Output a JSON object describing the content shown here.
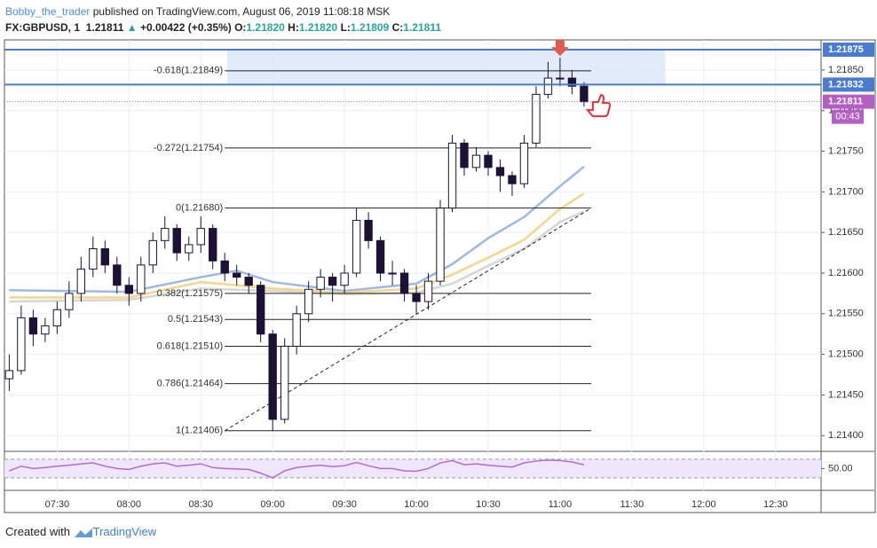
{
  "header": {
    "author": "Bobby_the_trader",
    "published": "published on TradingView.com, August 06, 2019 11:08:18 MSK",
    "symbol": "FX:GBPUSD, 1",
    "last": "1.21811",
    "change": "+0.00422 (+0.35%)",
    "ohlc": [
      {
        "label": "O:",
        "value": "1.21820"
      },
      {
        "label": "H:",
        "value": "1.21820"
      },
      {
        "label": "L:",
        "value": "1.21809"
      },
      {
        "label": "C:",
        "value": "1.21811"
      }
    ]
  },
  "footer": {
    "created": "Created with",
    "brand": "TradingView"
  },
  "chart_data": {
    "type": "candlestick",
    "x": [
      "07:10",
      "07:15",
      "07:20",
      "07:25",
      "07:30",
      "07:35",
      "07:40",
      "07:45",
      "07:50",
      "07:55",
      "08:00",
      "08:05",
      "08:10",
      "08:15",
      "08:20",
      "08:25",
      "08:30",
      "08:35",
      "08:40",
      "08:45",
      "08:50",
      "08:55",
      "09:00",
      "09:05",
      "09:10",
      "09:15",
      "09:20",
      "09:25",
      "09:30",
      "09:35",
      "09:40",
      "09:45",
      "09:50",
      "09:55",
      "10:00",
      "10:05",
      "10:10",
      "10:15",
      "10:20",
      "10:25",
      "10:30",
      "10:35",
      "10:40",
      "10:45",
      "10:50",
      "10:55",
      "11:00",
      "11:05",
      "11:10"
    ],
    "open": [
      1.2147,
      1.2148,
      1.21545,
      1.21525,
      1.21535,
      1.21555,
      1.21575,
      1.21605,
      1.2163,
      1.2161,
      1.21585,
      1.21575,
      1.2161,
      1.2164,
      1.21655,
      1.21625,
      1.21635,
      1.21655,
      1.21615,
      1.216,
      1.21595,
      1.21585,
      1.21525,
      1.2142,
      1.2151,
      1.2155,
      1.2158,
      1.21595,
      1.21585,
      1.216,
      1.21665,
      1.2164,
      1.216,
      1.216,
      1.21575,
      1.21565,
      1.2159,
      1.2168,
      1.2176,
      1.2173,
      1.21745,
      1.2173,
      1.2172,
      1.2171,
      1.2176,
      1.2182,
      1.2184,
      1.2184,
      1.2183
    ],
    "high": [
      1.215,
      1.2156,
      1.21555,
      1.21545,
      1.21565,
      1.2159,
      1.2162,
      1.21645,
      1.2164,
      1.2162,
      1.21595,
      1.2162,
      1.2165,
      1.2167,
      1.2166,
      1.21645,
      1.2167,
      1.2166,
      1.21625,
      1.2161,
      1.216,
      1.2159,
      1.2153,
      1.2152,
      1.2156,
      1.2159,
      1.21605,
      1.216,
      1.2161,
      1.2168,
      1.21675,
      1.21645,
      1.21615,
      1.21605,
      1.21585,
      1.216,
      1.2169,
      1.2177,
      1.21765,
      1.21755,
      1.2175,
      1.2174,
      1.21725,
      1.2177,
      1.2183,
      1.2186,
      1.21865,
      1.2185,
      1.21835
    ],
    "low": [
      1.21455,
      1.21475,
      1.2151,
      1.21515,
      1.21525,
      1.21545,
      1.21565,
      1.21595,
      1.216,
      1.21575,
      1.2156,
      1.21565,
      1.216,
      1.2163,
      1.21615,
      1.21615,
      1.21625,
      1.21605,
      1.2159,
      1.21585,
      1.21575,
      1.21515,
      1.21406,
      1.21415,
      1.215,
      1.2154,
      1.2157,
      1.21565,
      1.21575,
      1.21595,
      1.2163,
      1.2159,
      1.21585,
      1.21565,
      1.2155,
      1.21555,
      1.21585,
      1.21675,
      1.2172,
      1.21725,
      1.2172,
      1.217,
      1.21695,
      1.21705,
      1.21755,
      1.21815,
      1.2183,
      1.2182,
      1.21805
    ],
    "close": [
      1.2148,
      1.21545,
      1.21525,
      1.21535,
      1.21555,
      1.21575,
      1.21605,
      1.2163,
      1.2161,
      1.21585,
      1.21575,
      1.2161,
      1.2164,
      1.21655,
      1.21625,
      1.21635,
      1.21655,
      1.21615,
      1.216,
      1.21595,
      1.21585,
      1.21525,
      1.2142,
      1.2151,
      1.2155,
      1.2158,
      1.21595,
      1.21585,
      1.216,
      1.21665,
      1.2164,
      1.216,
      1.216,
      1.21575,
      1.21565,
      1.2159,
      1.2168,
      1.2176,
      1.2173,
      1.21745,
      1.2173,
      1.2172,
      1.2171,
      1.2176,
      1.2182,
      1.2184,
      1.2184,
      1.2183,
      1.21811
    ],
    "up_color": "#ffffff",
    "down_color": "#1d1136",
    "wick_color": "#1d1136",
    "moving_averages": [
      {
        "color": "#9fb8e3",
        "x": [
          "07:10",
          "08:00",
          "08:30",
          "08:45",
          "09:00",
          "09:30",
          "10:00",
          "10:15",
          "10:30",
          "10:45",
          "11:00",
          "11:10"
        ],
        "values": [
          1.21579,
          1.21577,
          1.21595,
          1.21603,
          1.21589,
          1.21578,
          1.21587,
          1.21611,
          1.21643,
          1.21669,
          1.21707,
          1.21731
        ]
      },
      {
        "color": "#f2d68a",
        "x": [
          "07:10",
          "08:00",
          "08:30",
          "09:00",
          "09:30",
          "10:00",
          "10:15",
          "10:30",
          "10:45",
          "11:00",
          "11:10"
        ],
        "values": [
          1.2157,
          1.2157,
          1.21589,
          1.21581,
          1.21576,
          1.21581,
          1.21598,
          1.21619,
          1.21641,
          1.21679,
          1.21698
        ]
      },
      {
        "color": "#d6d6d6",
        "x": [
          "07:10",
          "08:00",
          "08:30",
          "09:00",
          "09:30",
          "10:00",
          "10:15",
          "10:30",
          "10:45",
          "11:00",
          "11:10"
        ],
        "values": [
          1.21565,
          1.21567,
          1.21581,
          1.21578,
          1.21574,
          1.21576,
          1.21587,
          1.21609,
          1.2163,
          1.21663,
          1.21676
        ]
      }
    ],
    "zone": {
      "start": "08:41",
      "end": "11:44",
      "color": "#dbe6f8"
    },
    "price_lines": [
      {
        "value": 1.21875,
        "color": "#4a7bd0"
      },
      {
        "value": 1.21832,
        "color": "#4a7bd0"
      },
      {
        "value": 1.21811,
        "color": "#b35fc4",
        "countdown": "00:43"
      }
    ],
    "fib_range": {
      "start": "08:40",
      "end": "11:13"
    },
    "fib_levels": [
      {
        "label": "-0.618(1.21849)",
        "price": 1.21849
      },
      {
        "label": "-0.272(1.21754)",
        "price": 1.21754
      },
      {
        "label": "0(1.21680)",
        "price": 1.2168
      },
      {
        "label": "0.382(1.21575)",
        "price": 1.21575
      },
      {
        "label": "0.5(1.21543)",
        "price": 1.21543
      },
      {
        "label": "0.618(1.21510)",
        "price": 1.2151
      },
      {
        "label": "0.786(1.21464)",
        "price": 1.21464
      },
      {
        "label": "1(1.21406)",
        "price": 1.21406
      }
    ],
    "xlim": [
      "07:08",
      "12:49"
    ],
    "xticks": [
      "07:30",
      "08:00",
      "08:30",
      "09:00",
      "09:30",
      "10:00",
      "10:30",
      "11:00",
      "11:30",
      "12:00",
      "12:30"
    ],
    "ylim": [
      1.21385,
      1.21887
    ],
    "yticks": [
      {
        "value": 1.214,
        "label": "1.21400"
      },
      {
        "value": 1.2145,
        "label": "1.21450"
      },
      {
        "value": 1.215,
        "label": "1.21500"
      },
      {
        "value": 1.2155,
        "label": "1.21550"
      },
      {
        "value": 1.216,
        "label": "1.21600"
      },
      {
        "value": 1.2165,
        "label": "1.21650"
      },
      {
        "value": 1.217,
        "label": "1.21700"
      },
      {
        "value": 1.2175,
        "label": "1.21750"
      },
      {
        "value": 1.218,
        "label": "1.21800"
      },
      {
        "value": 1.2185,
        "label": "1.21850"
      }
    ],
    "grid": true,
    "rsi": {
      "color": "#b06cd6",
      "values": [
        45,
        55,
        50,
        52,
        55,
        57,
        60,
        62,
        55,
        50,
        48,
        55,
        60,
        62,
        55,
        57,
        60,
        52,
        50,
        49,
        48,
        40,
        30,
        45,
        52,
        55,
        57,
        54,
        56,
        63,
        56,
        50,
        50,
        45,
        44,
        50,
        62,
        67,
        58,
        60,
        57,
        55,
        53,
        62,
        66,
        68,
        67,
        64,
        58
      ],
      "ylim": [
        5,
        83
      ],
      "bands": [
        70,
        30
      ],
      "yticks": [
        {
          "value": 50,
          "label": "50.00"
        }
      ]
    }
  }
}
